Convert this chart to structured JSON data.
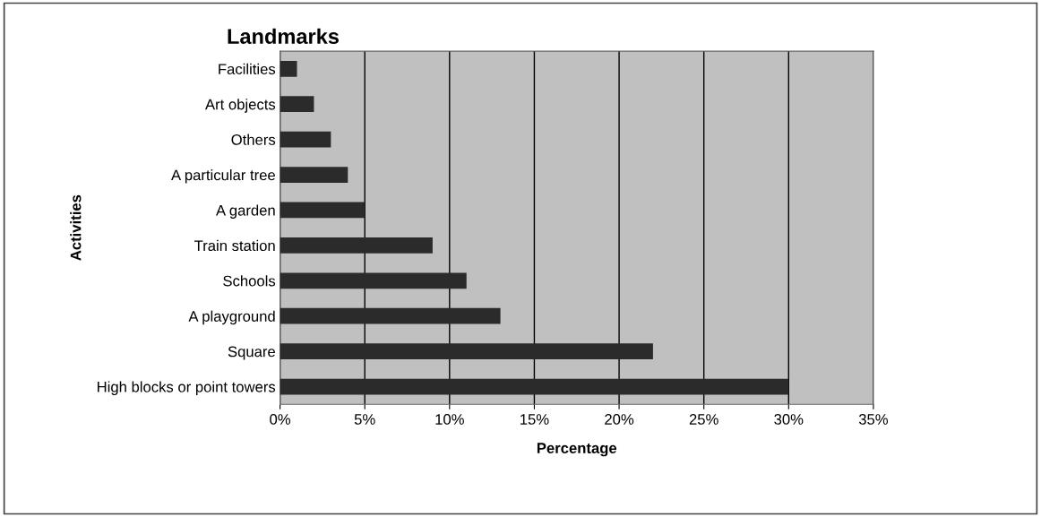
{
  "chart_data": {
    "type": "bar",
    "orientation": "horizontal",
    "title": "Landmarks",
    "xlabel": "Percentage",
    "ylabel": "Activities",
    "categories": [
      "Facilities",
      "Art objects",
      "Others",
      "A particular tree",
      "A garden",
      "Train station",
      "Schools",
      "A playground",
      "Square",
      "High blocks or point towers"
    ],
    "values": [
      1,
      2,
      3,
      4,
      5,
      9,
      11,
      13,
      22,
      30
    ],
    "color": "#2b2b2b",
    "xlim": [
      0,
      35
    ],
    "xticks": [
      {
        "value": 0,
        "label": "0%"
      },
      {
        "value": 5,
        "label": "5%"
      },
      {
        "value": 10,
        "label": "10%"
      },
      {
        "value": 15,
        "label": "15%"
      },
      {
        "value": 20,
        "label": "20%"
      },
      {
        "value": 25,
        "label": "25%"
      },
      {
        "value": 30,
        "label": "30%"
      },
      {
        "value": 35,
        "label": "35%"
      }
    ],
    "grid": "x"
  }
}
